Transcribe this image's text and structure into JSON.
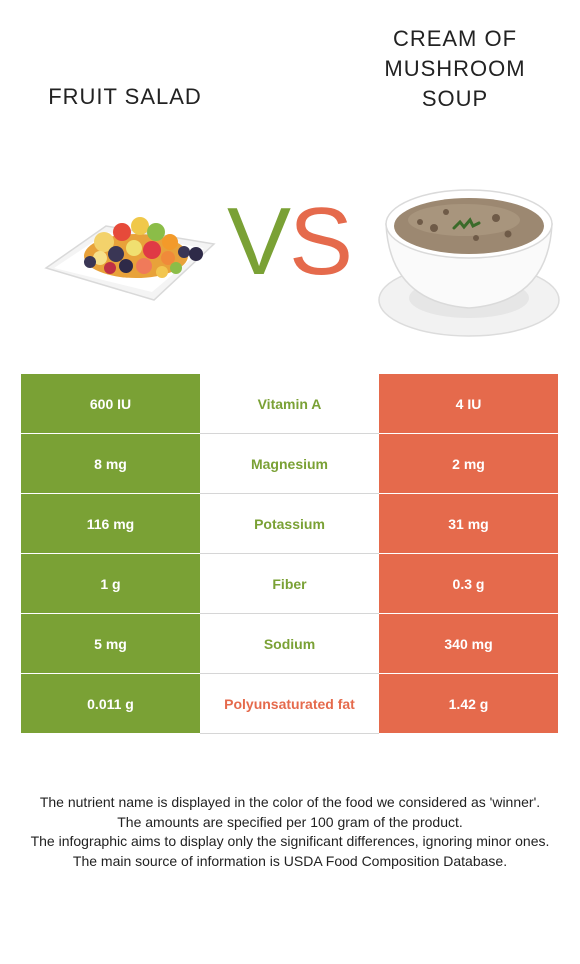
{
  "foods": {
    "left": {
      "name": "FRUIT SALAD",
      "color": "#7aa135"
    },
    "right": {
      "name_lines": [
        "CREAM OF",
        "MUSHROOM",
        "SOUP"
      ],
      "color": "#e56a4c"
    }
  },
  "vs": {
    "v": "V",
    "s": "S"
  },
  "rows": [
    {
      "left": "600 IU",
      "nutrient": "Vitamin A",
      "right": "4 IU",
      "winner": "left"
    },
    {
      "left": "8 mg",
      "nutrient": "Magnesium",
      "right": "2 mg",
      "winner": "left"
    },
    {
      "left": "116 mg",
      "nutrient": "Potassium",
      "right": "31 mg",
      "winner": "left"
    },
    {
      "left": "1 g",
      "nutrient": "Fiber",
      "right": "0.3 g",
      "winner": "left"
    },
    {
      "left": "5 mg",
      "nutrient": "Sodium",
      "right": "340 mg",
      "winner": "left"
    },
    {
      "left": "0.011 g",
      "nutrient": "Polyunsaturated fat",
      "right": "1.42 g",
      "winner": "right"
    }
  ],
  "notes": [
    "The nutrient name is displayed in the color of the food we considered as 'winner'.",
    "The amounts are specified per 100 gram of the product.",
    "The infographic aims to display only the significant differences, ignoring minor ones.",
    "The main source of information is USDA Food Composition Database."
  ]
}
